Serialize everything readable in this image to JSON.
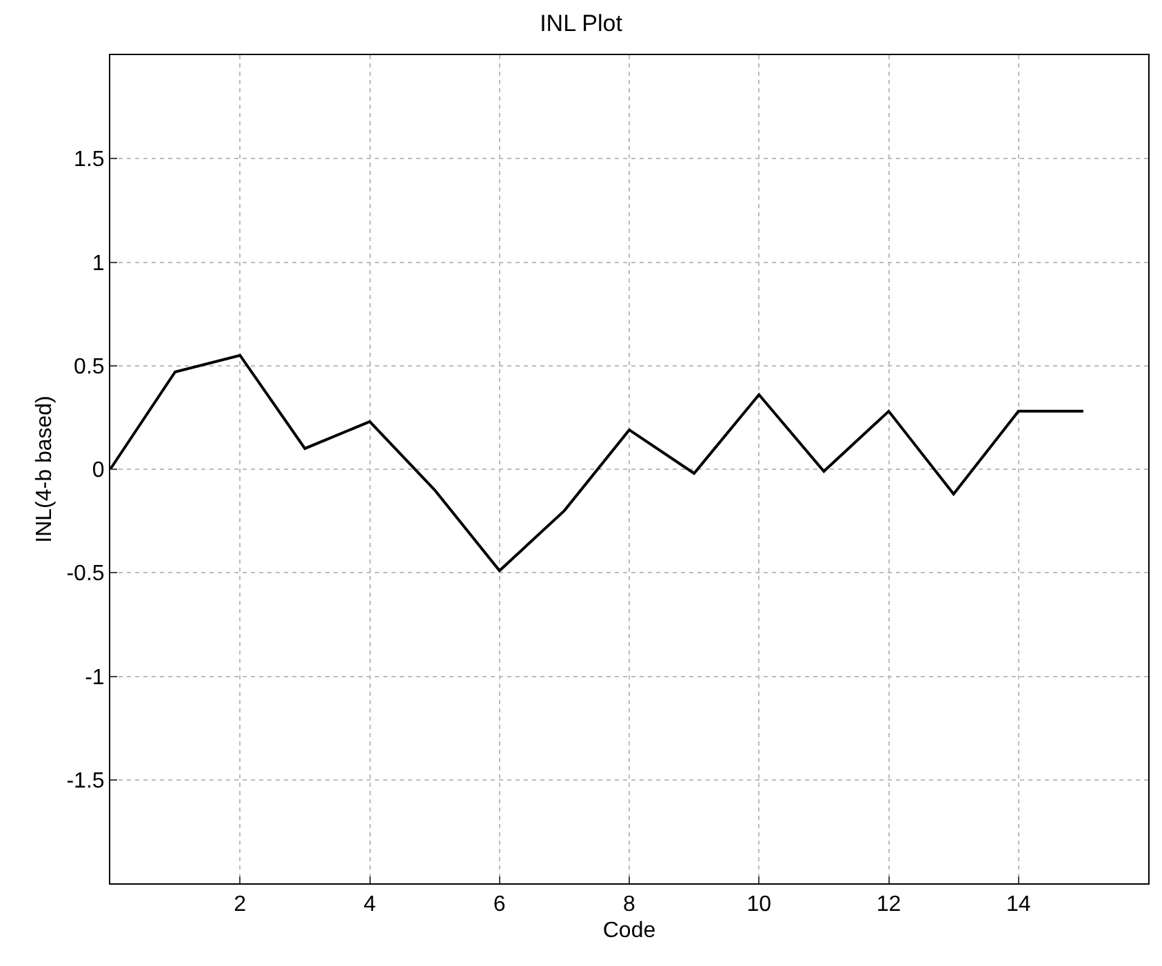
{
  "chart_data": {
    "type": "line",
    "title": "INL Plot",
    "xlabel": "Code",
    "ylabel": "INL(4-b based)",
    "x": [
      0,
      1,
      2,
      3,
      4,
      5,
      6,
      7,
      8,
      9,
      10,
      11,
      12,
      13,
      14,
      15
    ],
    "series": [
      {
        "color": "#000000",
        "values": [
          0,
          0.47,
          0.55,
          0.1,
          0.23,
          -0.1,
          -0.49,
          -0.2,
          0.19,
          -0.02,
          0.36,
          -0.01,
          0.28,
          -0.12,
          0.28,
          0.28
        ]
      }
    ],
    "xlim": [
      0,
      16
    ],
    "xticks": [
      2,
      4,
      6,
      8,
      10,
      12,
      14
    ],
    "ylim": [
      -2,
      2
    ],
    "yticks": [
      -1.5,
      -1,
      -0.5,
      0,
      0.5,
      1,
      1.5
    ],
    "grid": true,
    "marker": "none",
    "line_style": "solid"
  }
}
